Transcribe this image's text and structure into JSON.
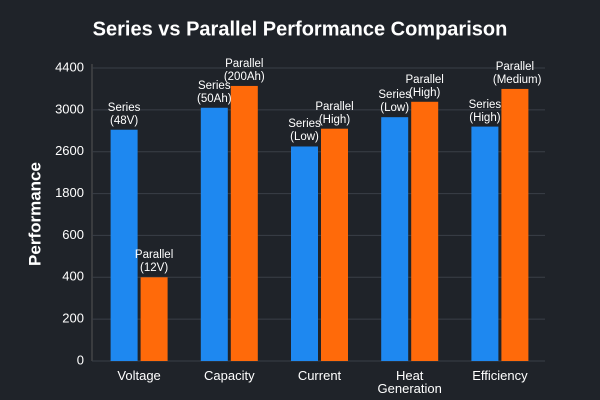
{
  "chart_data": {
    "type": "bar",
    "title": "Series vs Parallel Performance Comparison",
    "y_label": "Performance",
    "categories": [
      "Voltage",
      "Capacity",
      "Current",
      "Heat Generation",
      "Efficiency"
    ],
    "series": [
      {
        "name": "Series",
        "color": "#1e88f0",
        "values": [
          2810,
          3070,
          2650,
          2930,
          2840
        ],
        "bar_labels": [
          "Series (48V)",
          "Series (50Ah)",
          "Series (Low)",
          "Series (Low)",
          "Series (High)"
        ]
      },
      {
        "name": "Parallel",
        "color": "#ff6a0a",
        "values": [
          400,
          3800,
          2820,
          3270,
          3700
        ],
        "bar_labels": [
          "Parallel (12V)",
          "Parallel (200Ah)",
          "Parallel (High)",
          "Parallel (High)",
          "Parallel (Medium)"
        ]
      }
    ],
    "ylim": [
      0,
      4400
    ],
    "yticks": [
      0,
      200,
      400,
      600,
      1800,
      2600,
      3000,
      4400
    ],
    "grid": true
  }
}
